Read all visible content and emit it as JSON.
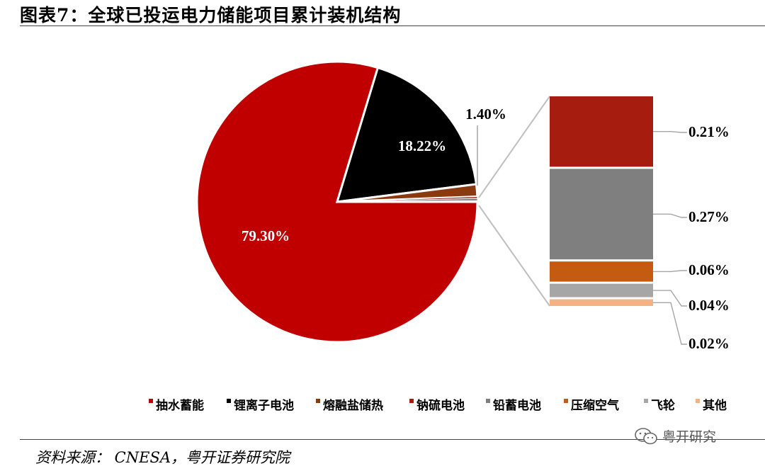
{
  "title": "图表7：全球已投运电力储能项目累计装机结构",
  "source": "资料来源：  CNESA，粤开证券研究院",
  "watermark": "粤开研究",
  "watermark_icon": "wechat-icon",
  "chart_data": [
    {
      "type": "pie",
      "title": "",
      "categories": [
        "抽水蓄能",
        "锂离子电池",
        "其他（熔融盐储热+钠硫电池+铅蓄电池+压缩空气+飞轮+其他）"
      ],
      "values": [
        79.3,
        18.22,
        1.4
      ],
      "value_labels": [
        "79.30%",
        "18.22%",
        "1.40%"
      ],
      "colors": [
        "#C00000",
        "#000000",
        "#8B3A0F"
      ]
    },
    {
      "type": "bar",
      "stacked": true,
      "title": "",
      "categories": [
        "钠硫电池",
        "铅蓄电池",
        "压缩空气",
        "飞轮",
        "其他"
      ],
      "values": [
        0.21,
        0.27,
        0.06,
        0.04,
        0.02
      ],
      "value_labels": [
        "0.21%",
        "0.27%",
        "0.06%",
        "0.04%",
        "0.02%"
      ],
      "colors": [
        "#A61C0E",
        "#7F7F7F",
        "#C55A11",
        "#A6A6A6",
        "#F4B183"
      ]
    }
  ],
  "legend": [
    {
      "label": "抽水蓄能",
      "color": "#C00000"
    },
    {
      "label": "锂离子电池",
      "color": "#000000"
    },
    {
      "label": "熔融盐储热",
      "color": "#8B3A0F"
    },
    {
      "label": "钠硫电池",
      "color": "#A61C0E"
    },
    {
      "label": "铅蓄电池",
      "color": "#7F7F7F"
    },
    {
      "label": "压缩空气",
      "color": "#C55A11"
    },
    {
      "label": "飞轮",
      "color": "#A6A6A6"
    },
    {
      "label": "其他",
      "color": "#F4B183"
    }
  ]
}
